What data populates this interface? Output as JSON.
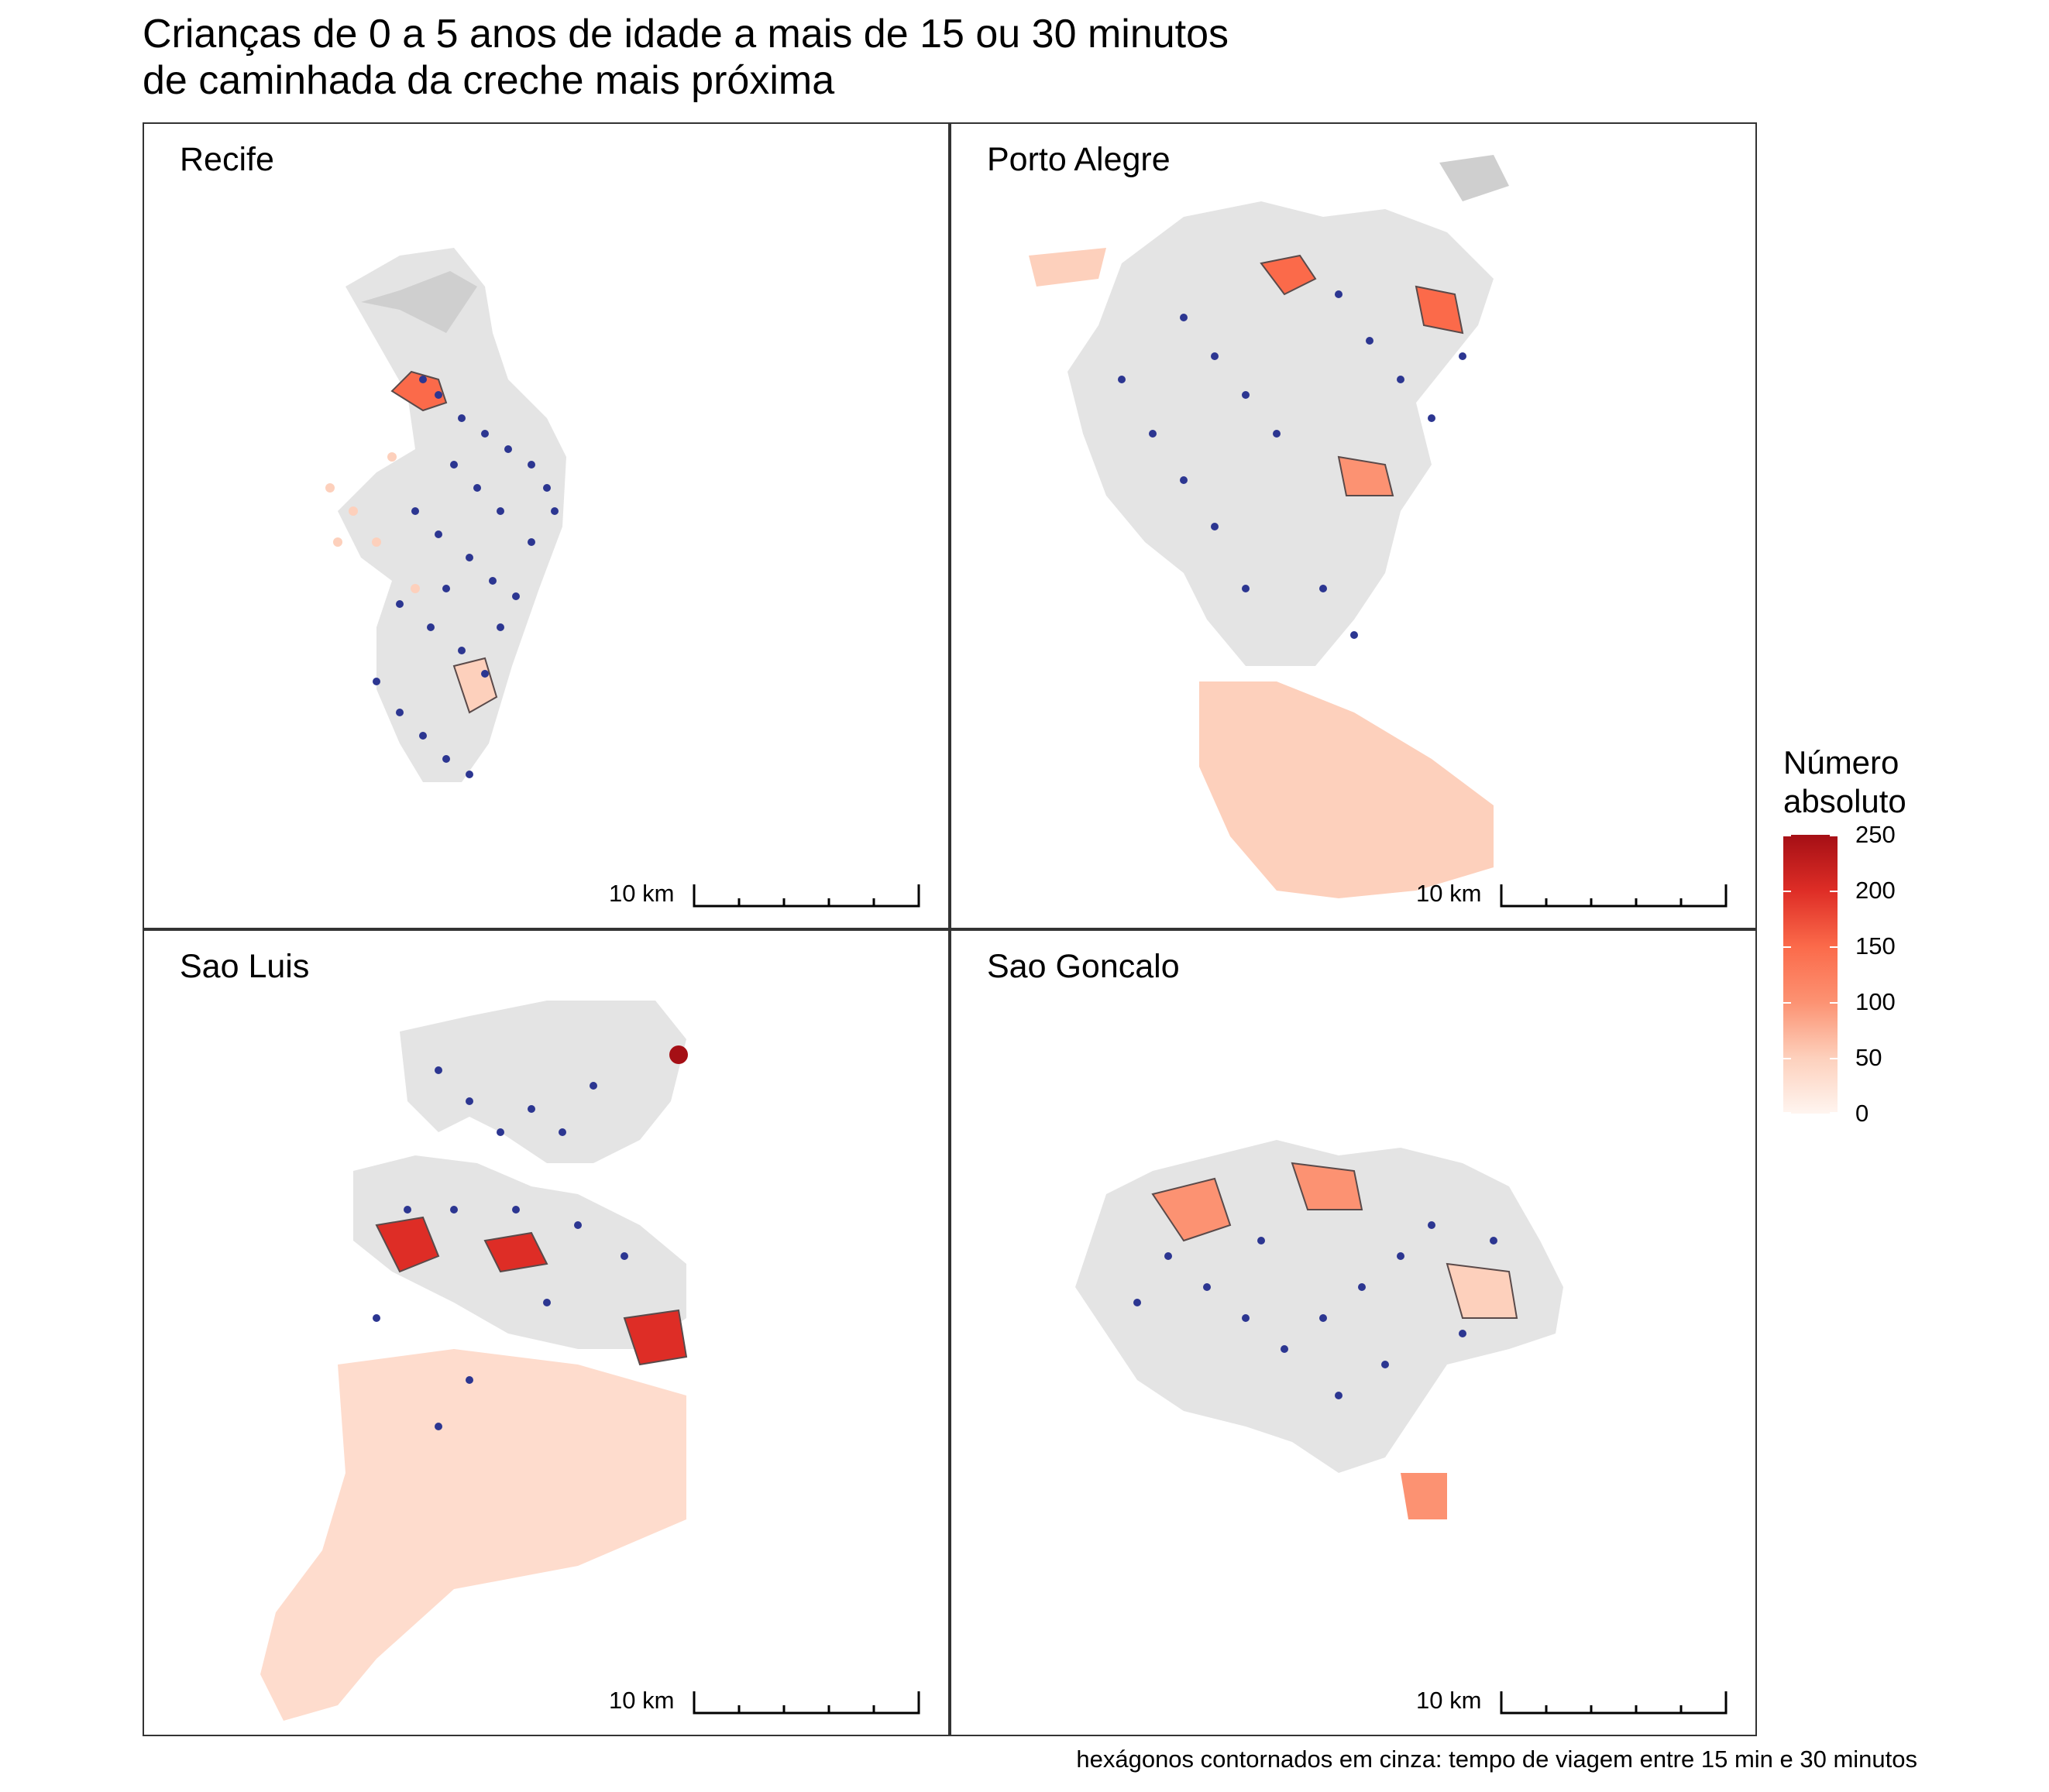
{
  "title": "Crianças de 0 a 5 anos de idade a mais de 15 ou 30 minutos\nde caminhada da creche mais próxima",
  "panels": [
    {
      "id": "recife",
      "label": "Recife",
      "scale_label": "10 km"
    },
    {
      "id": "porto-alegre",
      "label": "Porto Alegre",
      "scale_label": "10 km"
    },
    {
      "id": "sao-luis",
      "label": "Sao Luis",
      "scale_label": "10 km"
    },
    {
      "id": "sao-goncalo",
      "label": "Sao Goncalo",
      "scale_label": "10 km"
    }
  ],
  "legend": {
    "title": "Número\nabsoluto",
    "ticks": [
      "250",
      "200",
      "150",
      "100",
      "50",
      "0"
    ],
    "colors": {
      "low": "#fff5f0",
      "mid": "#fb6a4a",
      "high": "#a50f15"
    }
  },
  "symbology": {
    "no_children_gray": "#d9d9d9",
    "creche_point": "#2c3691",
    "outline": "#5a4a4a"
  },
  "caption": "hexágonos contornados em cinza: tempo de viagem entre 15 min e 30 minutos"
}
